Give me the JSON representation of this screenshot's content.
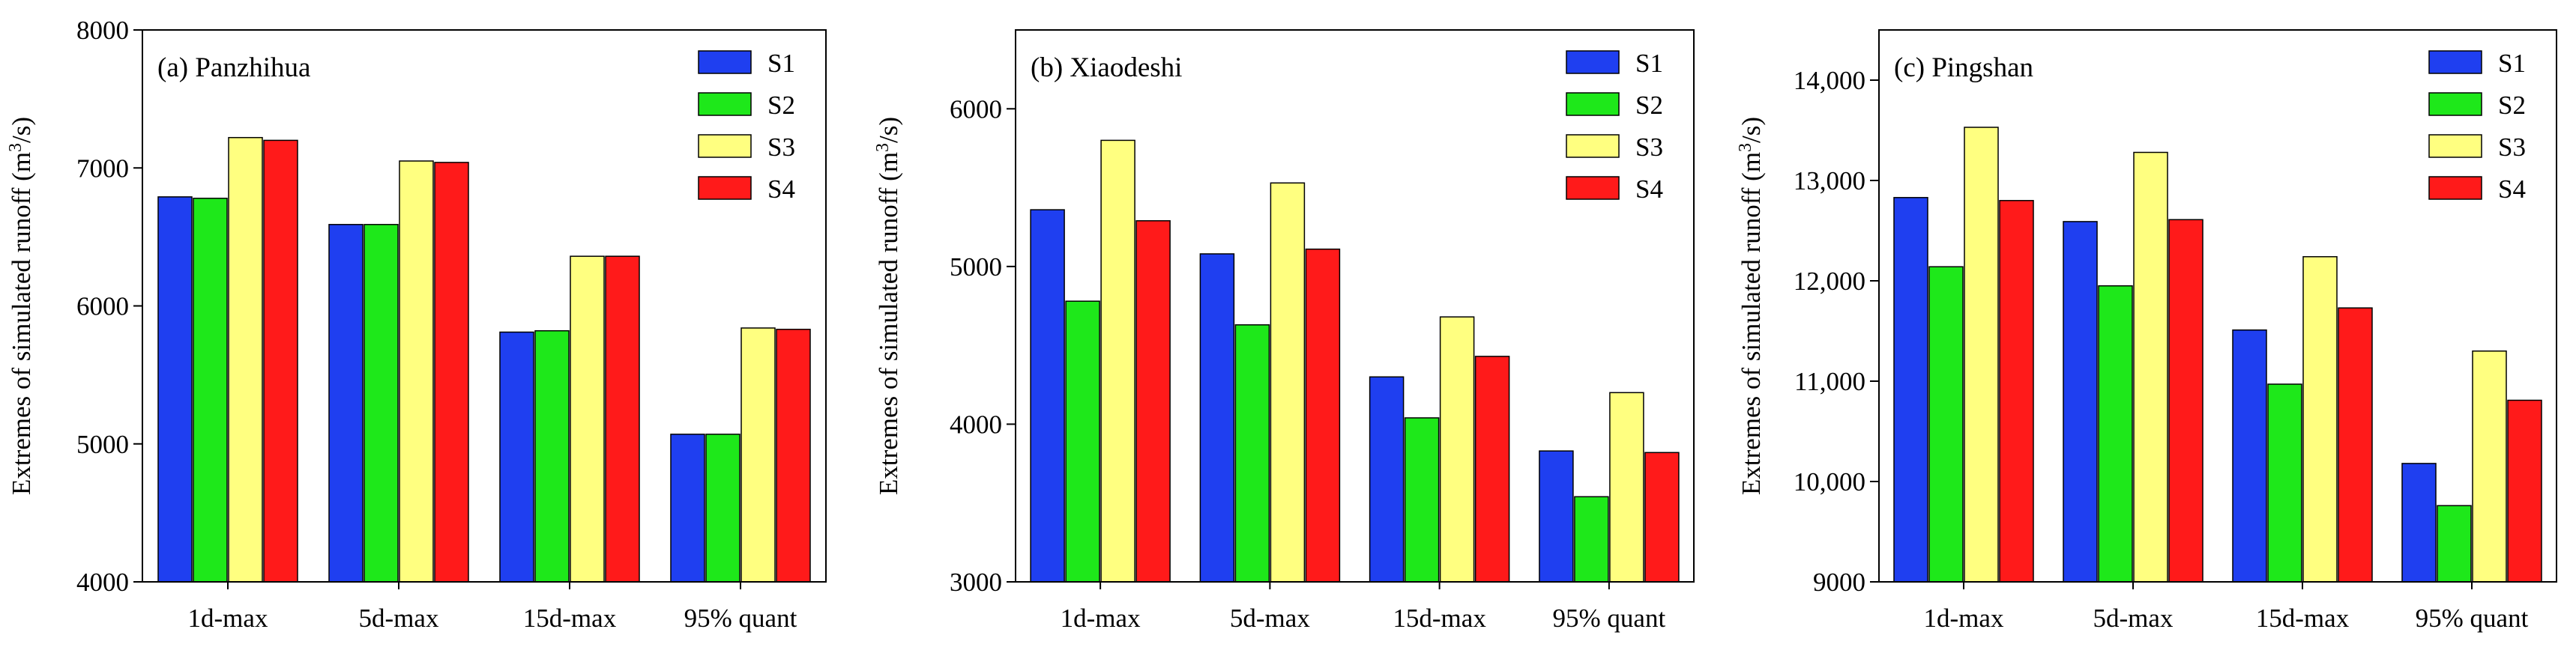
{
  "colors": {
    "S1": "#1f3ff0",
    "S2": "#1ee81a",
    "S3": "#ffff80",
    "S4": "#ff1a1a",
    "axis": "#000000",
    "background": "#ffffff"
  },
  "chart_data": [
    {
      "type": "bar",
      "title": "(a) Panzhihua",
      "ylabel": "Extremes of simulated runoff (m³/s)",
      "ylabel_parts": {
        "before": "Extremes of simulated runoff (m",
        "sup": "3",
        "after": "/s)"
      },
      "categories": [
        "1d-max",
        "5d-max",
        "15d-max",
        "95% quant"
      ],
      "ylim": [
        4000,
        8000
      ],
      "yticks": [
        4000,
        5000,
        6000,
        7000,
        8000
      ],
      "ytick_labels": [
        "4000",
        "5000",
        "6000",
        "7000",
        "8000"
      ],
      "legend_position": "top-right",
      "series": [
        {
          "name": "S1",
          "values": [
            6790,
            6590,
            5810,
            5070
          ]
        },
        {
          "name": "S2",
          "values": [
            6780,
            6590,
            5820,
            5070
          ]
        },
        {
          "name": "S3",
          "values": [
            7220,
            7050,
            6360,
            5840
          ]
        },
        {
          "name": "S4",
          "values": [
            7200,
            7040,
            6360,
            5830
          ]
        }
      ]
    },
    {
      "type": "bar",
      "title": "(b) Xiaodeshi",
      "ylabel": "Extremes of simulated runoff (m³/s)",
      "ylabel_parts": {
        "before": "Extremes of simulated runoff (m",
        "sup": "3",
        "after": "/s)"
      },
      "categories": [
        "1d-max",
        "5d-max",
        "15d-max",
        "95% quant"
      ],
      "ylim": [
        3000,
        6500
      ],
      "yticks": [
        3000,
        4000,
        5000,
        6000
      ],
      "ytick_labels": [
        "3000",
        "4000",
        "5000",
        "6000"
      ],
      "legend_position": "top-right",
      "series": [
        {
          "name": "S1",
          "values": [
            5360,
            5080,
            4300,
            3830
          ]
        },
        {
          "name": "S2",
          "values": [
            4780,
            4630,
            4040,
            3540
          ]
        },
        {
          "name": "S3",
          "values": [
            5800,
            5530,
            4680,
            4200
          ]
        },
        {
          "name": "S4",
          "values": [
            5290,
            5110,
            4430,
            3820
          ]
        }
      ]
    },
    {
      "type": "bar",
      "title": "(c) Pingshan",
      "ylabel": "Extremes of simulated runoff (m³/s)",
      "ylabel_parts": {
        "before": "Extremes of simulated runoff (m",
        "sup": "3",
        "after": "/s)"
      },
      "categories": [
        "1d-max",
        "5d-max",
        "15d-max",
        "95% quant"
      ],
      "ylim": [
        9000,
        14500
      ],
      "yticks": [
        9000,
        10000,
        11000,
        12000,
        13000,
        14000
      ],
      "ytick_labels": [
        "9000",
        "10,000",
        "11,000",
        "12,000",
        "13,000",
        "14,000"
      ],
      "legend_position": "top-right",
      "series": [
        {
          "name": "S1",
          "values": [
            12830,
            12590,
            11510,
            10180
          ]
        },
        {
          "name": "S2",
          "values": [
            12140,
            11950,
            10970,
            9760
          ]
        },
        {
          "name": "S3",
          "values": [
            13530,
            13280,
            12240,
            11300
          ]
        },
        {
          "name": "S4",
          "values": [
            12800,
            12610,
            11730,
            10810
          ]
        }
      ]
    }
  ]
}
